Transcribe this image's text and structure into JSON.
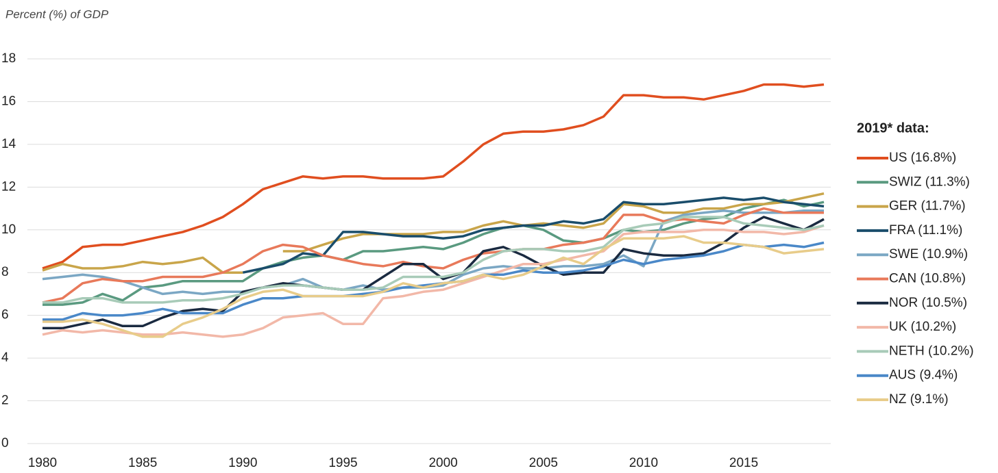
{
  "chart_data": {
    "type": "line",
    "subtitle": "Percent (%) of GDP",
    "legend_title": "2019* data:",
    "x": [
      1980,
      1981,
      1982,
      1983,
      1984,
      1985,
      1986,
      1987,
      1988,
      1989,
      1990,
      1991,
      1992,
      1993,
      1994,
      1995,
      1996,
      1997,
      1998,
      1999,
      2000,
      2001,
      2002,
      2003,
      2004,
      2005,
      2006,
      2007,
      2008,
      2009,
      2010,
      2011,
      2012,
      2013,
      2014,
      2015,
      2016,
      2017,
      2018,
      2019
    ],
    "xlim": [
      1980,
      2019
    ],
    "xticks": [
      1980,
      1985,
      1990,
      1995,
      2000,
      2005,
      2010,
      2015
    ],
    "ylim": [
      0,
      18
    ],
    "yticks": [
      0,
      2,
      4,
      6,
      8,
      10,
      12,
      14,
      16,
      18
    ],
    "grid": true,
    "series": [
      {
        "name": "US (16.8%)",
        "color": "#e04e1f",
        "values": [
          8.2,
          8.5,
          9.2,
          9.3,
          9.3,
          9.5,
          9.7,
          9.9,
          10.2,
          10.6,
          11.2,
          11.9,
          12.2,
          12.5,
          12.4,
          12.5,
          12.5,
          12.4,
          12.4,
          12.4,
          12.5,
          13.2,
          14.0,
          14.5,
          14.6,
          14.6,
          14.7,
          14.9,
          15.3,
          16.3,
          16.3,
          16.2,
          16.2,
          16.1,
          16.3,
          16.5,
          16.8,
          16.8,
          16.7,
          16.8
        ]
      },
      {
        "name": "SWIZ (11.3%)",
        "color": "#5a9a80",
        "values": [
          6.5,
          6.5,
          6.6,
          7.0,
          6.7,
          7.3,
          7.4,
          7.6,
          7.6,
          7.6,
          7.6,
          8.2,
          8.5,
          8.7,
          8.8,
          8.6,
          9.0,
          9.0,
          9.1,
          9.2,
          9.1,
          9.4,
          9.8,
          10.1,
          10.2,
          10.0,
          9.5,
          9.4,
          9.6,
          10.0,
          9.9,
          10.0,
          10.3,
          10.5,
          10.6,
          11.0,
          11.2,
          11.4,
          11.1,
          11.3
        ]
      },
      {
        "name": "GER (11.7%)",
        "color": "#c9a54a",
        "values": [
          8.1,
          8.4,
          8.2,
          8.2,
          8.3,
          8.5,
          8.4,
          8.5,
          8.7,
          8.0,
          8.0,
          null,
          9.0,
          9.0,
          9.3,
          9.6,
          9.8,
          9.8,
          9.8,
          9.8,
          9.9,
          9.9,
          10.2,
          10.4,
          10.2,
          10.3,
          10.2,
          10.1,
          10.3,
          11.2,
          11.1,
          10.8,
          10.8,
          11.0,
          11.0,
          11.2,
          11.2,
          11.3,
          11.5,
          11.7
        ]
      },
      {
        "name": "FRA (11.1%)",
        "color": "#1a4d6b",
        "values": [
          null,
          null,
          null,
          null,
          null,
          null,
          null,
          null,
          null,
          null,
          8.0,
          8.2,
          8.4,
          8.9,
          8.8,
          9.9,
          9.9,
          9.8,
          9.7,
          9.7,
          9.6,
          9.7,
          10.0,
          10.1,
          10.2,
          10.2,
          10.4,
          10.3,
          10.5,
          11.3,
          11.2,
          11.2,
          11.3,
          11.4,
          11.5,
          11.4,
          11.5,
          11.3,
          11.2,
          11.1
        ]
      },
      {
        "name": "SWE (10.9%)",
        "color": "#7ba7c4",
        "values": [
          7.7,
          7.8,
          7.9,
          7.8,
          7.6,
          7.3,
          7.0,
          7.1,
          7.0,
          7.1,
          7.1,
          7.3,
          7.4,
          7.7,
          7.3,
          7.2,
          7.4,
          7.2,
          7.3,
          7.3,
          7.4,
          7.9,
          8.2,
          8.3,
          8.2,
          8.2,
          8.3,
          8.3,
          8.4,
          8.8,
          8.3,
          10.4,
          10.7,
          10.8,
          10.9,
          10.8,
          10.8,
          10.8,
          10.9,
          10.9
        ]
      },
      {
        "name": "CAN (10.8%)",
        "color": "#e8795a",
        "values": [
          6.6,
          6.8,
          7.5,
          7.7,
          7.6,
          7.6,
          7.8,
          7.8,
          7.8,
          8.0,
          8.4,
          9.0,
          9.3,
          9.2,
          8.8,
          8.6,
          8.4,
          8.3,
          8.5,
          8.3,
          8.2,
          8.6,
          8.9,
          9.0,
          9.1,
          9.1,
          9.3,
          9.4,
          9.6,
          10.7,
          10.7,
          10.4,
          10.5,
          10.4,
          10.3,
          10.7,
          11.0,
          10.8,
          10.8,
          10.8
        ]
      },
      {
        "name": "NOR (10.5%)",
        "color": "#1a2a40",
        "values": [
          5.4,
          5.4,
          5.6,
          5.8,
          5.5,
          5.5,
          5.9,
          6.2,
          6.3,
          6.2,
          7.1,
          7.3,
          7.5,
          7.4,
          7.3,
          7.2,
          7.2,
          7.8,
          8.4,
          8.4,
          7.7,
          8.0,
          9.0,
          9.2,
          8.8,
          8.3,
          7.9,
          8.0,
          8.0,
          9.1,
          8.9,
          8.8,
          8.8,
          8.9,
          9.4,
          10.1,
          10.6,
          10.3,
          10.0,
          10.5
        ]
      },
      {
        "name": "UK (10.2%)",
        "color": "#f2b8a8",
        "values": [
          5.1,
          5.3,
          5.2,
          5.3,
          5.2,
          5.1,
          5.1,
          5.2,
          5.1,
          5.0,
          5.1,
          5.4,
          5.9,
          6.0,
          6.1,
          5.6,
          5.6,
          6.8,
          6.9,
          7.1,
          7.2,
          7.5,
          7.8,
          8.1,
          8.4,
          8.4,
          8.6,
          8.8,
          9.0,
          9.8,
          9.9,
          9.9,
          9.9,
          10.0,
          10.0,
          9.9,
          9.9,
          9.8,
          9.9,
          10.2
        ]
      },
      {
        "name": "NETH (10.2%)",
        "color": "#a8cbb8",
        "values": [
          6.6,
          6.6,
          6.8,
          6.8,
          6.6,
          6.6,
          6.6,
          6.7,
          6.7,
          6.8,
          7.0,
          7.3,
          7.4,
          7.4,
          7.3,
          7.2,
          7.2,
          7.3,
          7.8,
          7.8,
          7.8,
          8.0,
          8.6,
          9.0,
          9.1,
          9.1,
          9.0,
          9.0,
          9.2,
          10.0,
          10.2,
          10.3,
          10.6,
          10.6,
          10.6,
          10.3,
          10.2,
          10.1,
          10.0,
          10.2
        ]
      },
      {
        "name": "AUS (9.4%)",
        "color": "#4a88c8",
        "values": [
          5.8,
          5.8,
          6.1,
          6.0,
          6.0,
          6.1,
          6.3,
          6.1,
          6.1,
          6.1,
          6.5,
          6.8,
          6.8,
          6.9,
          6.9,
          6.9,
          7.0,
          7.1,
          7.3,
          7.4,
          7.5,
          7.6,
          7.9,
          7.9,
          8.1,
          8.0,
          8.0,
          8.1,
          8.3,
          8.6,
          8.4,
          8.6,
          8.7,
          8.8,
          9.0,
          9.3,
          9.2,
          9.3,
          9.2,
          9.4
        ]
      },
      {
        "name": "NZ (9.1%)",
        "color": "#e8cc8a",
        "values": [
          5.7,
          5.7,
          5.8,
          5.6,
          5.3,
          5.0,
          5.0,
          5.6,
          5.9,
          6.3,
          6.8,
          7.1,
          7.2,
          6.9,
          6.9,
          6.9,
          6.9,
          7.1,
          7.5,
          7.3,
          7.5,
          7.6,
          7.9,
          7.7,
          7.9,
          8.3,
          8.7,
          8.4,
          9.1,
          9.6,
          9.6,
          9.6,
          9.7,
          9.4,
          9.4,
          9.3,
          9.2,
          8.9,
          9.0,
          9.1
        ]
      }
    ]
  }
}
